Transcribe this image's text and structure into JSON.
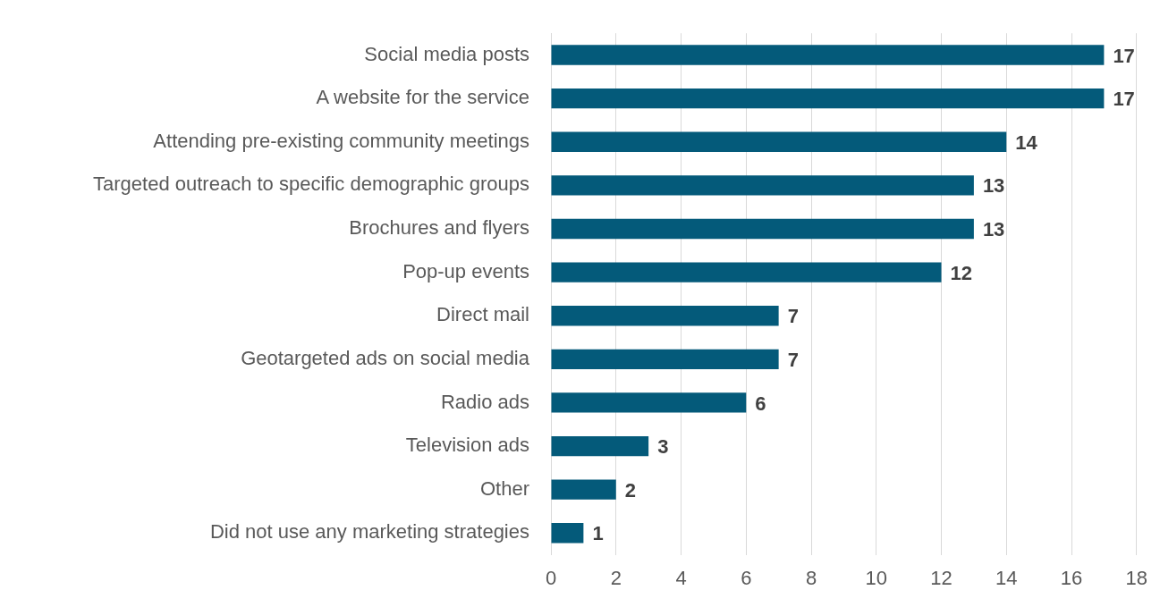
{
  "chart_data": {
    "type": "bar",
    "orientation": "horizontal",
    "categories": [
      "Social media posts",
      "A website for the service",
      "Attending pre-existing community meetings",
      "Targeted outreach to specific demographic groups",
      "Brochures and flyers",
      "Pop-up events",
      "Direct mail",
      "Geotargeted ads on social media",
      "Radio ads",
      "Television ads",
      "Other",
      "Did not use any marketing strategies"
    ],
    "values": [
      17,
      17,
      14,
      13,
      13,
      12,
      7,
      7,
      6,
      3,
      2,
      1
    ],
    "color": "#045a7a",
    "xlim": [
      0,
      18
    ],
    "xticks": [
      0,
      2,
      4,
      6,
      8,
      10,
      12,
      14,
      16,
      18
    ],
    "grid": "x",
    "legend": false,
    "data_labels": true
  }
}
